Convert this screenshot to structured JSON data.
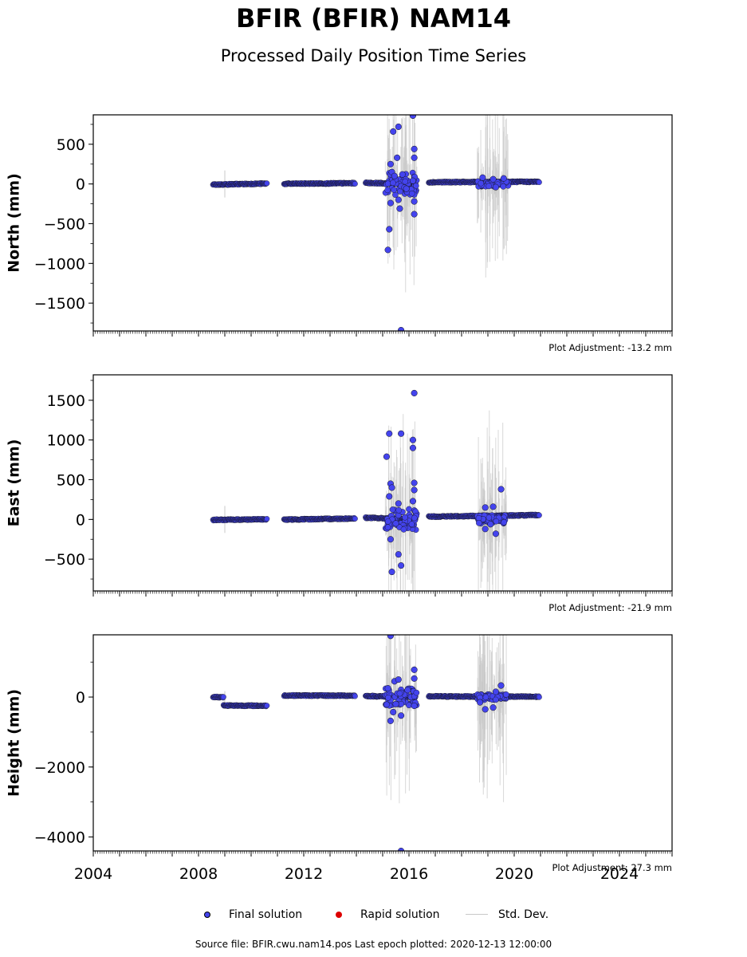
{
  "header": {
    "title": "BFIR (BFIR) NAM14",
    "subtitle": "Processed Daily Position Time Series"
  },
  "legend": {
    "final": {
      "label": "Final solution",
      "color": "#4444ee"
    },
    "rapid": {
      "label": "Rapid solution",
      "color": "#dd0000"
    },
    "std": {
      "label": "Std. Dev.",
      "color": "#c8c8c8"
    }
  },
  "footer": {
    "source": "Source file: BFIR.cwu.nam14.pos  Last epoch plotted: 2020-12-13 12:00:00"
  },
  "chart_data": [
    {
      "type": "scatter",
      "ylabel": "North (mm)",
      "adjustment": "Plot Adjustment: -13.2 mm",
      "xlim": [
        2004,
        2026
      ],
      "ylim": [
        -1850,
        870
      ],
      "yticks": [
        500,
        0,
        -500,
        -1000,
        -1500
      ],
      "segments": [
        [
          2008.55,
          2010.6,
          -8,
          5
        ],
        [
          2011.25,
          2013.95,
          2,
          10
        ],
        [
          2014.35,
          2016.25,
          14,
          0
        ],
        [
          2016.75,
          2020.95,
          22,
          28
        ]
      ],
      "outliers": [
        [
          2015.2,
          -830
        ],
        [
          2015.25,
          -570
        ],
        [
          2015.3,
          -240
        ],
        [
          2015.3,
          250
        ],
        [
          2015.4,
          660
        ],
        [
          2015.55,
          330
        ],
        [
          2015.6,
          720
        ],
        [
          2015.6,
          -200
        ],
        [
          2015.65,
          -310
        ],
        [
          2015.7,
          -1840
        ],
        [
          2016.15,
          860
        ],
        [
          2016.2,
          440
        ],
        [
          2016.2,
          330
        ],
        [
          2016.2,
          -220
        ],
        [
          2016.2,
          -380
        ],
        [
          2016.15,
          40
        ],
        [
          2015.35,
          150
        ],
        [
          2015.45,
          100
        ],
        [
          2015.75,
          120
        ],
        [
          2015.9,
          -60
        ],
        [
          2018.8,
          80
        ],
        [
          2019.2,
          60
        ],
        [
          2019.6,
          70
        ],
        [
          2019.3,
          -40
        ]
      ],
      "burst_regions": [
        [
          2015.1,
          2016.3,
          220
        ],
        [
          2018.6,
          2019.8,
          50
        ]
      ]
    },
    {
      "type": "scatter",
      "ylabel": "East (mm)",
      "adjustment": "Plot Adjustment: -21.9 mm",
      "xlim": [
        2004,
        2026
      ],
      "ylim": [
        -900,
        1820
      ],
      "yticks": [
        1500,
        1000,
        500,
        0,
        -500
      ],
      "segments": [
        [
          2008.55,
          2010.6,
          -6,
          2
        ],
        [
          2011.25,
          2013.95,
          -2,
          12
        ],
        [
          2014.35,
          2016.25,
          22,
          0
        ],
        [
          2016.75,
          2020.95,
          35,
          55
        ]
      ],
      "outliers": [
        [
          2015.15,
          790
        ],
        [
          2015.25,
          1080
        ],
        [
          2015.3,
          450
        ],
        [
          2015.35,
          400
        ],
        [
          2015.25,
          290
        ],
        [
          2015.3,
          -250
        ],
        [
          2015.35,
          -660
        ],
        [
          2015.6,
          -440
        ],
        [
          2015.7,
          -580
        ],
        [
          2015.7,
          1080
        ],
        [
          2016.15,
          1000
        ],
        [
          2016.15,
          900
        ],
        [
          2016.2,
          1590
        ],
        [
          2016.2,
          460
        ],
        [
          2016.2,
          370
        ],
        [
          2016.15,
          230
        ],
        [
          2015.6,
          200
        ],
        [
          2015.5,
          -50
        ],
        [
          2019.5,
          380
        ],
        [
          2018.9,
          150
        ],
        [
          2019.2,
          160
        ],
        [
          2019.3,
          -180
        ],
        [
          2018.9,
          -120
        ],
        [
          2019.1,
          -60
        ]
      ],
      "burst_regions": [
        [
          2015.1,
          2016.3,
          200
        ],
        [
          2018.6,
          2019.7,
          80
        ]
      ]
    },
    {
      "type": "scatter",
      "ylabel": "Height (mm)",
      "adjustment": "Plot Adjustment: 27.3 mm",
      "xlim": [
        2004,
        2026
      ],
      "ylim": [
        -4400,
        1780
      ],
      "yticks": [
        0,
        -2000,
        -4000
      ],
      "segments": [
        [
          2008.55,
          2008.95,
          0,
          0
        ],
        [
          2008.95,
          2010.6,
          -240,
          -250
        ],
        [
          2011.25,
          2013.95,
          45,
          40
        ],
        [
          2014.35,
          2016.25,
          30,
          0
        ],
        [
          2016.75,
          2020.95,
          20,
          10
        ]
      ],
      "outliers": [
        [
          2015.3,
          1750
        ],
        [
          2015.3,
          -680
        ],
        [
          2015.4,
          -430
        ],
        [
          2015.45,
          450
        ],
        [
          2015.6,
          500
        ],
        [
          2015.7,
          -530
        ],
        [
          2015.7,
          -4400
        ],
        [
          2016.2,
          780
        ],
        [
          2016.2,
          530
        ],
        [
          2016.2,
          -250
        ],
        [
          2015.95,
          200
        ],
        [
          2015.5,
          -200
        ],
        [
          2015.2,
          250
        ],
        [
          2018.9,
          -350
        ],
        [
          2019.2,
          -300
        ],
        [
          2019.5,
          330
        ],
        [
          2019.3,
          150
        ],
        [
          2018.7,
          -150
        ]
      ],
      "burst_regions": [
        [
          2015.1,
          2016.3,
          380
        ],
        [
          2018.6,
          2019.7,
          120
        ]
      ]
    }
  ],
  "xaxis": {
    "ticks": [
      "2004",
      "2008",
      "2012",
      "2016",
      "2020",
      "2024"
    ]
  }
}
